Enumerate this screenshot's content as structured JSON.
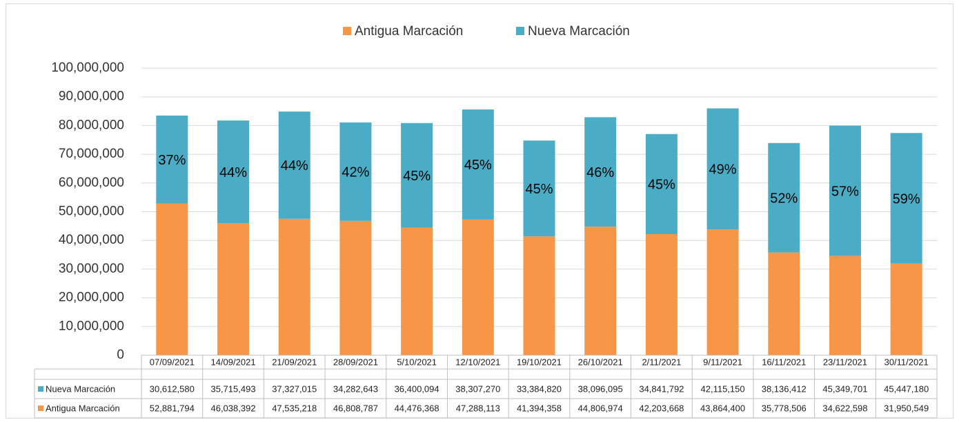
{
  "chart_data": {
    "type": "stacked-bar",
    "categories": [
      "07/09/2021",
      "14/09/2021",
      "21/09/2021",
      "28/09/2021",
      "5/10/2021",
      "12/10/2021",
      "19/10/2021",
      "26/10/2021",
      "2/11/2021",
      "9/11/2021",
      "16/11/2021",
      "23/11/2021",
      "30/11/2021"
    ],
    "series": [
      {
        "name": "Antigua Marcación",
        "color": "#f79646",
        "values": [
          52881794,
          46038392,
          47535218,
          46808787,
          44476368,
          47288113,
          41394358,
          44806974,
          42203668,
          43864400,
          35778506,
          34622598,
          31950549
        ],
        "value_labels": [
          "52,881,794",
          "46,038,392",
          "47,535,218",
          "46,808,787",
          "44,476,368",
          "47,288,113",
          "41,394,358",
          "44,806,974",
          "42,203,668",
          "43,864,400",
          "35,778,506",
          "34,622,598",
          "31,950,549"
        ]
      },
      {
        "name": "Nueva Marcación",
        "color": "#4bacc6",
        "values": [
          30612580,
          35715493,
          37327015,
          34282643,
          36400094,
          38307270,
          33384820,
          38096095,
          34841792,
          42115150,
          38136412,
          45349701,
          45447180
        ],
        "value_labels": [
          "30,612,580",
          "35,715,493",
          "37,327,015",
          "34,282,643",
          "36,400,094",
          "38,307,270",
          "33,384,820",
          "38,096,095",
          "34,841,792",
          "42,115,150",
          "38,136,412",
          "45,349,701",
          "45,447,180"
        ],
        "share_labels": [
          "37%",
          "44%",
          "44%",
          "42%",
          "45%",
          "45%",
          "45%",
          "46%",
          "45%",
          "49%",
          "52%",
          "57%",
          "59%"
        ]
      }
    ],
    "ylim": [
      0,
      100000000
    ],
    "yticks": [
      0,
      {
        "value": 10000000,
        "label": "10,000,000"
      },
      {
        "value": 20000000,
        "label": "20,000,000"
      },
      {
        "value": 30000000,
        "label": "30,000,000"
      },
      {
        "value": 40000000,
        "label": "40,000,000"
      },
      {
        "value": 50000000,
        "label": "50,000,000"
      },
      {
        "value": 60000000,
        "label": "60,000,000"
      },
      {
        "value": 70000000,
        "label": "70,000,000"
      },
      {
        "value": 80000000,
        "label": "80,000,000"
      },
      {
        "value": 90000000,
        "label": "90,000,000"
      },
      {
        "value": 100000000,
        "label": "100,000,000"
      }
    ],
    "grid": true
  }
}
